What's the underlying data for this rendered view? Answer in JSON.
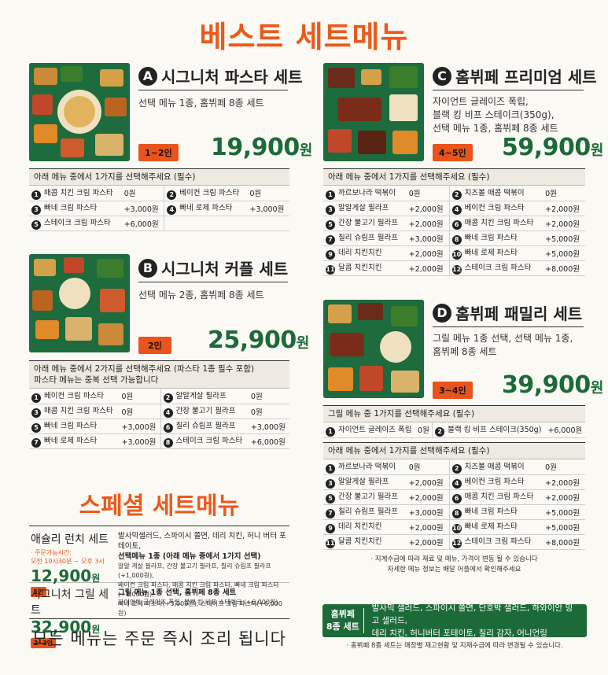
{
  "title": "베스트 세트메뉴",
  "setA": {
    "letter": "A",
    "name": "시그니처 파스타 세트",
    "desc": "선택 메뉴 1종, 홈뷔페 8종 세트",
    "people": "1~2인",
    "price": "19,900",
    "won": "원",
    "instruction": "아래 메뉴 중에서 1가지를 선택해주세요 (필수)",
    "options": [
      {
        "n": "1",
        "name": "매콤 치킨 크림 파스타",
        "price": "0원"
      },
      {
        "n": "2",
        "name": "베이컨 크림 파스타",
        "price": "0원"
      },
      {
        "n": "3",
        "name": "빠네 크림 파스타",
        "price": "+3,000원"
      },
      {
        "n": "4",
        "name": "빠네 로제 파스타",
        "price": "+3,000원"
      },
      {
        "n": "5",
        "name": "스테이크 크림 파스타",
        "price": "+6,000원"
      }
    ]
  },
  "setB": {
    "letter": "B",
    "name": "시그니처 커플 세트",
    "desc": "선택 메뉴 2종, 홈뷔페 8종 세트",
    "people": "2인",
    "price": "25,900",
    "won": "원",
    "instruction": "아래 메뉴 중에서 2가지를 선택해주세요 (파스타 1종 필수 포함)",
    "instruction2": "파스타 메뉴는 중복 선택 가능합니다",
    "options": [
      {
        "n": "1",
        "name": "베이컨 크림 파스타",
        "price": "0원"
      },
      {
        "n": "2",
        "name": "알알게살 필라프",
        "price": "0원"
      },
      {
        "n": "3",
        "name": "매콤 치킨 크림 파스타",
        "price": "0원"
      },
      {
        "n": "4",
        "name": "간장 불고기 필라프",
        "price": "0원"
      },
      {
        "n": "5",
        "name": "빠네 크림 파스타",
        "price": "+3,000원"
      },
      {
        "n": "6",
        "name": "칠리 슈림프 필라프",
        "price": "+3,000원"
      },
      {
        "n": "7",
        "name": "빠네 로제 파스타",
        "price": "+3,000원"
      },
      {
        "n": "8",
        "name": "스테이크 크림 파스타",
        "price": "+6,000원"
      }
    ]
  },
  "setC": {
    "letter": "C",
    "name": "홈뷔페 프리미엄 세트",
    "desc1": "자이언트 글레이즈 폭립,",
    "desc2": "블랙 킹 비프 스테이크(350g),",
    "desc3": "선택 메뉴 1종, 홈뷔페 8종 세트",
    "people": "4~5인",
    "price": "59,900",
    "won": "원",
    "instruction": "아래 메뉴 중에서 1가지를 선택해주세요 (필수)",
    "options": [
      {
        "n": "1",
        "name": "까르보나라 떡볶이",
        "price": "0원"
      },
      {
        "n": "2",
        "name": "치즈볼 매콤 떡볶이",
        "price": "0원"
      },
      {
        "n": "3",
        "name": "알알게살 필라프",
        "price": "+2,000원"
      },
      {
        "n": "4",
        "name": "베이컨 크림 파스타",
        "price": "+2,000원"
      },
      {
        "n": "5",
        "name": "간장 불고기 필라프",
        "price": "+2,000원"
      },
      {
        "n": "6",
        "name": "매콤 치킨 크림 파스타",
        "price": "+2,000원"
      },
      {
        "n": "7",
        "name": "칠리 슈림프 필라프",
        "price": "+3,000원"
      },
      {
        "n": "8",
        "name": "빠네 크림 파스타",
        "price": "+5,000원"
      },
      {
        "n": "9",
        "name": "데리 치킨치킨",
        "price": "+2,000원"
      },
      {
        "n": "10",
        "name": "빠네 로제 파스타",
        "price": "+5,000원"
      },
      {
        "n": "11",
        "name": "달콤 치킨치킨",
        "price": "+2,000원"
      },
      {
        "n": "12",
        "name": "스테이크 크림 파스타",
        "price": "+8,000원"
      }
    ]
  },
  "setD": {
    "letter": "D",
    "name": "홈뷔페 패밀리 세트",
    "desc1": "그릴 메뉴 1종 선택, 선택 메뉴 1종,",
    "desc2": "홈뷔페 8종 세트",
    "people": "3~4인",
    "price": "39,900",
    "won": "원",
    "grill_instruction": "그릴 메뉴 중 1가지를 선택해주세요 (필수)",
    "grill": [
      {
        "n": "1",
        "name": "자이언트 글레이즈 폭립",
        "price": "0원"
      },
      {
        "n": "2",
        "name": "블랙 킹 비프 스테이크(350g)",
        "price": "+6,000원"
      }
    ],
    "instruction": "아래 메뉴 중에서 1가지를 선택해주세요 (필수)",
    "options": [
      {
        "n": "1",
        "name": "까르보나라 떡볶이",
        "price": "0원"
      },
      {
        "n": "2",
        "name": "치즈볼 매콤 떡볶이",
        "price": "0원"
      },
      {
        "n": "3",
        "name": "알알게살 필라프",
        "price": "+2,000원"
      },
      {
        "n": "4",
        "name": "베이컨 크림 파스타",
        "price": "+2,000원"
      },
      {
        "n": "5",
        "name": "간장 불고기 필라프",
        "price": "+2,000원"
      },
      {
        "n": "6",
        "name": "매콤 치킨 크림 파스타",
        "price": "+2,000원"
      },
      {
        "n": "7",
        "name": "칠리 슈림프 필라프",
        "price": "+3,000원"
      },
      {
        "n": "8",
        "name": "빠네 크림 파스타",
        "price": "+5,000원"
      },
      {
        "n": "9",
        "name": "데리 치킨치킨",
        "price": "+2,000원"
      },
      {
        "n": "10",
        "name": "빠네 로제 파스타",
        "price": "+5,000원"
      },
      {
        "n": "11",
        "name": "달콤 치킨치킨",
        "price": "+2,000원"
      },
      {
        "n": "12",
        "name": "스테이크 크림 파스타",
        "price": "+8,000원"
      }
    ],
    "note1": "· 지계수급에 따라 재료 및 메뉴, 가격이 변동 될 수 있습니다",
    "note2": "자세한 메뉴 정보는 배달 어플에서 확인해주세요"
  },
  "special": {
    "title": "스페셜 세트메뉴",
    "lunch": {
      "name": "애슐리 런치 세트",
      "sub1": "· 주문가능시간:",
      "sub2": "오전 10시30분 ~ 오후 3시",
      "price": "12,900",
      "won": "원",
      "people": "1인",
      "desc": "발사믹샐러드, 스파이시 쫄면, 데리 치킨, 허니 버터 포테이토,",
      "desc2": "선택메뉴 1종 (아래 메뉴 중에서 1가지 선택)",
      "small1": "알알 게살 필라프, 간장 불고기 필라프, 칠리 슈림프 필라프 (+1,000원),",
      "small2": "베이컨 크림 파스타, 매콤 치킨 크림 파스타, 빠네 크림 파스타(+1,000원),",
      "small3": "빠네 로제 파스타(+3,000원), 스테이크 크림 파스타(+6,000원)"
    },
    "grill": {
      "name": "시그니처 그릴 세트",
      "price": "32,900",
      "won": "원",
      "people": "2~3인",
      "desc": "그릴 메뉴 1종 선택, 홈뷔페 8종 세트",
      "small": "자이언트 글레이즈 폭립, 블랙 킹 비프 스테이크 (+6,000원)"
    },
    "footer": "모든 메뉴는 주문 즉시 조리 됩니다"
  },
  "buffet": {
    "label1": "홈뷔페",
    "label2": "8종 세트",
    "text1": "발사믹 샐러드, 스파이시 쫄면, 단호박 샐러드, 하와이안 밍고 샐러드,",
    "text2": "데리 치킨, 허니버터 포테이토, 칠리 감자, 어니언링",
    "note": "· 홈뷔페 8종 세트는 매장별 재고현황 및 지재수급에 따라 변경될 수 있습니다."
  },
  "colors": {
    "accent": "#ea5a1c",
    "green": "#1d6a39",
    "dark": "#222222"
  }
}
